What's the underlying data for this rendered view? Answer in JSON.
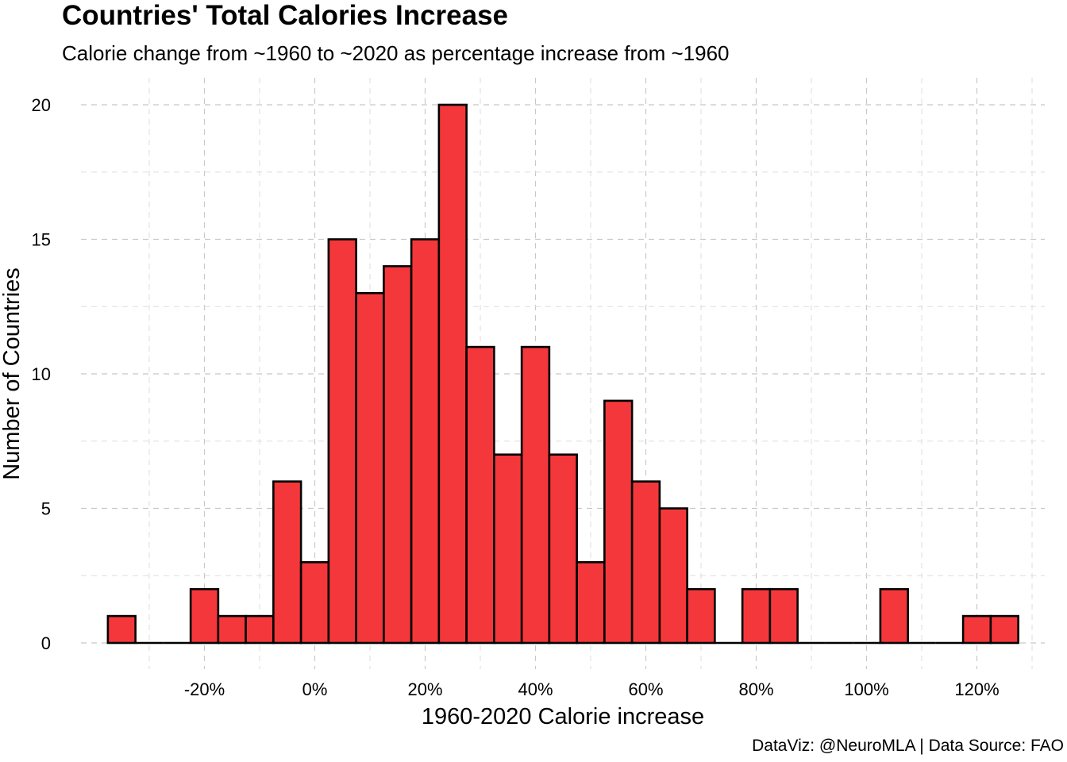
{
  "title": "Countries' Total Calories Increase",
  "subtitle": "Calorie change from ~1960 to ~2020 as percentage increase from ~1960",
  "caption": "DataViz: @NeuroMLA | Data Source: FAO",
  "chart_data": {
    "type": "bar",
    "title": "Countries' Total Calories Increase",
    "subtitle": "Calorie change from ~1960 to ~2020 as percentage increase from ~1960",
    "xlabel": "1960-2020 Calorie increase",
    "ylabel": "Number of Countries",
    "bin_width": 5,
    "bin_centers": [
      -35,
      -30,
      -25,
      -20,
      -15,
      -10,
      -5,
      0,
      5,
      10,
      15,
      20,
      25,
      30,
      35,
      40,
      45,
      50,
      55,
      60,
      65,
      70,
      75,
      80,
      85,
      90,
      95,
      100,
      105,
      110,
      115,
      120,
      125
    ],
    "values": [
      1,
      0,
      0,
      2,
      1,
      1,
      6,
      3,
      15,
      13,
      14,
      15,
      20,
      11,
      7,
      11,
      7,
      3,
      9,
      6,
      5,
      2,
      0,
      2,
      2,
      0,
      0,
      0,
      2,
      0,
      0,
      1,
      1
    ],
    "x_ticks": [
      -20,
      0,
      20,
      40,
      60,
      80,
      100,
      120
    ],
    "x_tick_labels": [
      "-20%",
      "0%",
      "20%",
      "40%",
      "60%",
      "80%",
      "100%",
      "120%"
    ],
    "y_ticks": [
      0,
      5,
      10,
      15,
      20
    ],
    "y_tick_labels": [
      "0",
      "5",
      "10",
      "15",
      "20"
    ],
    "xlim": [
      -37.5,
      127.5
    ],
    "ylim": [
      0,
      20
    ],
    "bar_color": "#f4373b",
    "bar_edge_color": "#000000",
    "grid": true,
    "legend": "none"
  }
}
